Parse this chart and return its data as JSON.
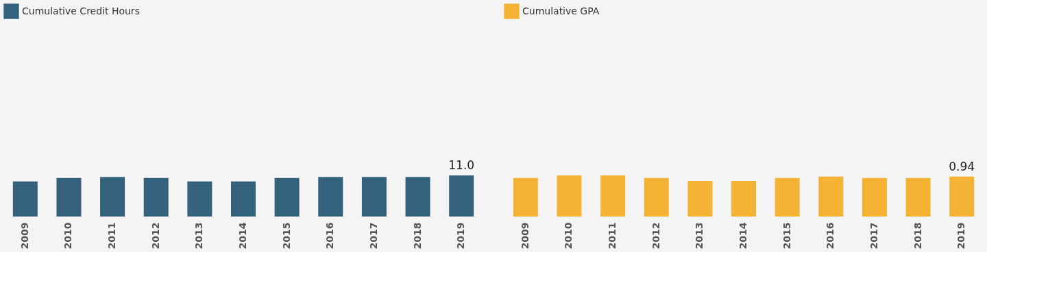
{
  "chart_data": [
    {
      "type": "bar",
      "legend": "top",
      "categories": [
        "2009",
        "2010",
        "2011",
        "2012",
        "2013",
        "2014",
        "2015",
        "2016",
        "2017",
        "2018",
        "2019"
      ],
      "series": [
        {
          "name": "Cumulative Credit Hours",
          "color": "#34627c",
          "values": [
            9.4,
            10.3,
            10.6,
            10.3,
            9.4,
            9.4,
            10.3,
            10.6,
            10.6,
            10.6,
            11.0
          ],
          "value_labels": [
            null,
            null,
            null,
            null,
            null,
            null,
            null,
            null,
            null,
            null,
            "11.0"
          ]
        }
      ]
    },
    {
      "type": "bar",
      "legend": "top",
      "categories": [
        "2009",
        "2010",
        "2011",
        "2012",
        "2013",
        "2014",
        "2015",
        "2016",
        "2017",
        "2018",
        "2019"
      ],
      "series": [
        {
          "name": "Cumulative GPA",
          "color": "#f5b335",
          "values": [
            0.91,
            0.97,
            0.97,
            0.91,
            0.84,
            0.84,
            0.91,
            0.94,
            0.91,
            0.91,
            0.94
          ],
          "value_labels": [
            null,
            null,
            null,
            null,
            null,
            null,
            null,
            null,
            null,
            null,
            "0.94"
          ]
        }
      ]
    }
  ]
}
